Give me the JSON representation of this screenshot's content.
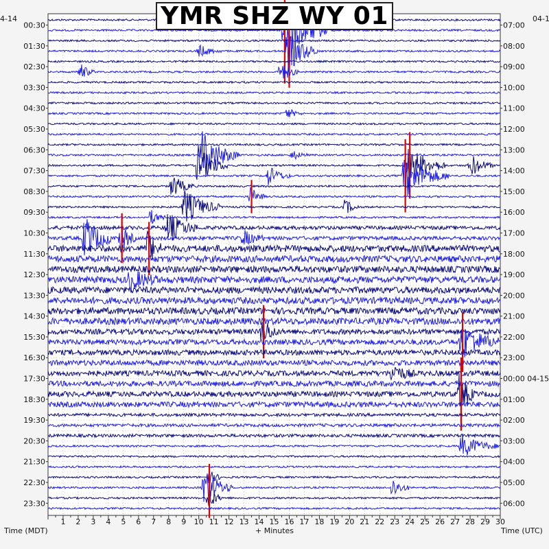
{
  "chart_data": {
    "type": "helicorder",
    "title": "YMR SHZ WY 01",
    "date_left": "4-14",
    "date_right": "04-1",
    "xlabel_left": "Time (MDT)",
    "xlabel_center": "+ Minutes",
    "xlabel_right": "Time (UTC)",
    "x_ticks": [
      "1",
      "2",
      "3",
      "4",
      "5",
      "6",
      "7",
      "8",
      "9",
      "10",
      "11",
      "12",
      "13",
      "14",
      "15",
      "16",
      "17",
      "18",
      "19",
      "20",
      "21",
      "22",
      "23",
      "24",
      "25",
      "26",
      "27",
      "28",
      "29",
      "30"
    ],
    "xlim": [
      0,
      30
    ],
    "left_hour_labels": [
      "00:30",
      "01:30",
      "02:30",
      "03:30",
      "04:30",
      "05:30",
      "06:30",
      "07:30",
      "08:30",
      "09:30",
      "10:30",
      "11:30",
      "12:30",
      "13:30",
      "14:30",
      "15:30",
      "16:30",
      "17:30",
      "18:30",
      "19:30",
      "20:30",
      "21:30",
      "22:30",
      "23:30"
    ],
    "right_hour_labels": [
      "07:00",
      "08:00",
      "09:00",
      "10:00",
      "11:00",
      "12:00",
      "13:00",
      "14:00",
      "15:00",
      "16:00",
      "17:00",
      "18:00",
      "19:00",
      "20:00",
      "21:00",
      "22:00",
      "23:00",
      "00:00 04-15",
      "01:00",
      "02:00",
      "03:00",
      "04:00",
      "05:00",
      "06:00"
    ],
    "line_count": 48,
    "trace_colors": [
      "#0b0b80",
      "#1d1dea"
    ],
    "clip_color": "#e00000",
    "grid": "dotted",
    "events": [
      {
        "line": 1,
        "minute": 15.6,
        "amp": 3.2,
        "dur": 3.2,
        "clip": true
      },
      {
        "line": 3,
        "minute": 15.9,
        "amp": 2.2,
        "dur": 2.0,
        "clip": true
      },
      {
        "line": 3,
        "minute": 10.0,
        "amp": 0.6,
        "dur": 1.5,
        "clip": false
      },
      {
        "line": 5,
        "minute": 2.1,
        "amp": 0.9,
        "dur": 1.0,
        "clip": false
      },
      {
        "line": 5,
        "minute": 15.4,
        "amp": 1.2,
        "dur": 1.2,
        "clip": false
      },
      {
        "line": 9,
        "minute": 15.8,
        "amp": 0.6,
        "dur": 1.0,
        "clip": false
      },
      {
        "line": 13,
        "minute": 16.2,
        "amp": 0.5,
        "dur": 1.0,
        "clip": false
      },
      {
        "line": 13,
        "minute": 10.2,
        "amp": 2.4,
        "dur": 2.5,
        "clip": false
      },
      {
        "line": 14,
        "minute": 9.9,
        "amp": 2.0,
        "dur": 2.0,
        "clip": false
      },
      {
        "line": 14,
        "minute": 23.9,
        "amp": 2.0,
        "dur": 2.5,
        "clip": true
      },
      {
        "line": 15,
        "minute": 23.6,
        "amp": 2.2,
        "dur": 3.0,
        "clip": true
      },
      {
        "line": 14,
        "minute": 28.0,
        "amp": 1.2,
        "dur": 1.5,
        "clip": false
      },
      {
        "line": 15,
        "minute": 14.6,
        "amp": 1.0,
        "dur": 1.5,
        "clip": false
      },
      {
        "line": 16,
        "minute": 8.2,
        "amp": 1.2,
        "dur": 1.5,
        "clip": false
      },
      {
        "line": 17,
        "minute": 13.4,
        "amp": 1.0,
        "dur": 1.0,
        "clip": true
      },
      {
        "line": 18,
        "minute": 9.0,
        "amp": 1.8,
        "dur": 2.5,
        "clip": false
      },
      {
        "line": 18,
        "minute": 19.7,
        "amp": 0.8,
        "dur": 1.0,
        "clip": false
      },
      {
        "line": 19,
        "minute": 6.8,
        "amp": 0.8,
        "dur": 1.0,
        "clip": false
      },
      {
        "line": 20,
        "minute": 7.9,
        "amp": 1.6,
        "dur": 2.0,
        "clip": false
      },
      {
        "line": 21,
        "minute": 2.4,
        "amp": 2.2,
        "dur": 2.0,
        "clip": false
      },
      {
        "line": 21,
        "minute": 12.9,
        "amp": 0.8,
        "dur": 1.5,
        "clip": false
      },
      {
        "line": 21,
        "minute": 4.8,
        "amp": 1.5,
        "dur": 1.0,
        "clip": true
      },
      {
        "line": 22,
        "minute": 6.6,
        "amp": 1.6,
        "dur": 1.0,
        "clip": true
      },
      {
        "line": 25,
        "minute": 5.4,
        "amp": 1.0,
        "dur": 2.0,
        "clip": false
      },
      {
        "line": 30,
        "minute": 14.2,
        "amp": 1.6,
        "dur": 1.0,
        "clip": true
      },
      {
        "line": 31,
        "minute": 27.4,
        "amp": 1.8,
        "dur": 2.5,
        "clip": true
      },
      {
        "line": 34,
        "minute": 22.8,
        "amp": 0.9,
        "dur": 1.5,
        "clip": false
      },
      {
        "line": 36,
        "minute": 27.3,
        "amp": 2.2,
        "dur": 1.0,
        "clip": true
      },
      {
        "line": 41,
        "minute": 27.4,
        "amp": 1.2,
        "dur": 2.5,
        "clip": false
      },
      {
        "line": 44,
        "minute": 10.6,
        "amp": 0.8,
        "dur": 1.0,
        "clip": true
      },
      {
        "line": 45,
        "minute": 10.3,
        "amp": 2.0,
        "dur": 2.0,
        "clip": false
      },
      {
        "line": 46,
        "minute": 10.6,
        "amp": 1.2,
        "dur": 1.0,
        "clip": true
      },
      {
        "line": 45,
        "minute": 22.8,
        "amp": 1.0,
        "dur": 1.2,
        "clip": false
      }
    ]
  }
}
